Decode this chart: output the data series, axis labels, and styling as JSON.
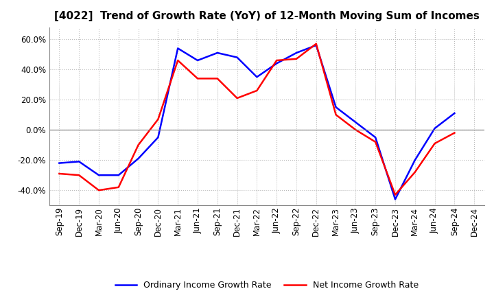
{
  "title": "[4022]  Trend of Growth Rate (YoY) of 12-Month Moving Sum of Incomes",
  "x_labels": [
    "Sep-19",
    "Dec-19",
    "Mar-20",
    "Jun-20",
    "Sep-20",
    "Dec-20",
    "Mar-21",
    "Jun-21",
    "Sep-21",
    "Dec-21",
    "Mar-22",
    "Jun-22",
    "Sep-22",
    "Dec-22",
    "Mar-23",
    "Jun-23",
    "Sep-23",
    "Dec-23",
    "Mar-24",
    "Jun-24",
    "Sep-24",
    "Dec-24"
  ],
  "ordinary_income": [
    -0.22,
    -0.21,
    -0.3,
    -0.3,
    -0.19,
    -0.05,
    0.54,
    0.46,
    0.51,
    0.48,
    0.35,
    0.44,
    0.51,
    0.56,
    0.15,
    0.05,
    -0.05,
    -0.46,
    -0.2,
    0.01,
    0.11,
    null
  ],
  "net_income": [
    -0.29,
    -0.3,
    -0.4,
    -0.38,
    -0.1,
    0.07,
    0.46,
    0.34,
    0.34,
    0.21,
    0.26,
    0.46,
    0.47,
    0.57,
    0.1,
    0.0,
    -0.08,
    -0.43,
    -0.28,
    -0.09,
    -0.02,
    null
  ],
  "ordinary_color": "#0000FF",
  "net_color": "#FF0000",
  "ylim": [
    -0.5,
    0.68
  ],
  "yticks": [
    -0.4,
    -0.2,
    0.0,
    0.2,
    0.4,
    0.6
  ],
  "background_color": "#FFFFFF",
  "grid_color": "#BBBBBB",
  "legend_ordinary": "Ordinary Income Growth Rate",
  "legend_net": "Net Income Growth Rate",
  "title_fontsize": 11,
  "tick_fontsize": 8.5
}
